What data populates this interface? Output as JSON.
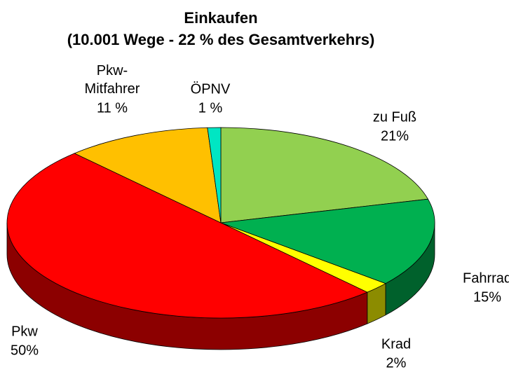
{
  "chart_data": {
    "type": "pie",
    "title": "Einkaufen",
    "subtitle": "(10.001 Wege - 22 % des Gesamtverkehrs)",
    "categories": [
      "zu Fuß",
      "Fahrrad",
      "Krad",
      "Pkw",
      "Pkw-Mitfahrer",
      "ÖPNV"
    ],
    "values": [
      21,
      15,
      2,
      50,
      11,
      1
    ],
    "value_labels": [
      "21%",
      "15%",
      "2%",
      "50%",
      "11 %",
      "1 %"
    ],
    "colors": [
      "#92d050",
      "#00b050",
      "#ffff00",
      "#ff0000",
      "#ffc000",
      "#00e6c3"
    ]
  }
}
